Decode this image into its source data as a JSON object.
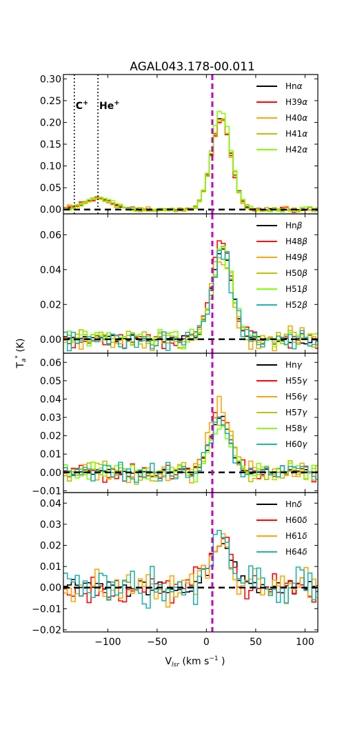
{
  "title": "AGAL043.178-00.011",
  "xlabel": "V",
  "xlabel_sub": "lsr",
  "xlabel_units": " (km s",
  "xlabel_exp": "−1",
  "xlabel_close": " )",
  "ylabel": "T",
  "ylabel_sub": "a",
  "ylabel_sup": "*",
  "ylabel_units": "  (K)",
  "chart_data": {
    "type": "line",
    "style": "step",
    "xlim": [
      -145,
      113
    ],
    "xticks": [
      -100,
      -50,
      0,
      50,
      100
    ],
    "xtick_labels": [
      "−100",
      "−50",
      "0",
      "50",
      "100"
    ],
    "grid": false,
    "v_source": 6,
    "v_source_color": "#bf00bf",
    "markers": [
      {
        "label": "C",
        "sup": "+",
        "x": -134
      },
      {
        "label": "He",
        "sup": "+",
        "x": -110
      }
    ],
    "panels": [
      {
        "id": "alpha",
        "ylim": [
          -0.01,
          0.31
        ],
        "yticks": [
          0.0,
          0.05,
          0.1,
          0.15,
          0.2,
          0.25,
          0.3
        ],
        "ytick_labels": [
          "0.00",
          "0.05",
          "0.10",
          "0.15",
          "0.20",
          "0.25",
          "0.30"
        ],
        "peak": 0.21,
        "center": 15,
        "width": 10,
        "bump": 0.025,
        "noise": 0.006,
        "show_markers": true,
        "series": [
          {
            "name": "Hn",
            "greek": "α",
            "color": "#000000",
            "amp": 1.0,
            "noise": 0.6
          },
          {
            "name": "H39",
            "greek": "α",
            "color": "#ff0000",
            "amp": 0.98,
            "noise": 1.1
          },
          {
            "name": "H40",
            "greek": "α",
            "color": "#ffa500",
            "amp": 1.02,
            "noise": 1.3
          },
          {
            "name": "H41",
            "greek": "α",
            "color": "#bfbf00",
            "amp": 0.97,
            "noise": 1.0
          },
          {
            "name": "H42",
            "greek": "α",
            "color": "#7fff00",
            "amp": 1.08,
            "noise": 1.2
          }
        ]
      },
      {
        "id": "beta",
        "ylim": [
          -0.008,
          0.072
        ],
        "yticks": [
          0.0,
          0.02,
          0.04,
          0.06
        ],
        "ytick_labels": [
          "0.00",
          "0.02",
          "0.04",
          "0.06"
        ],
        "peak": 0.052,
        "center": 16,
        "width": 10,
        "bump": 0.0,
        "noise": 0.006,
        "show_markers": false,
        "series": [
          {
            "name": "Hn",
            "greek": "β",
            "color": "#000000",
            "amp": 1.0,
            "noise": 0.5
          },
          {
            "name": "H48",
            "greek": "β",
            "color": "#ff0000",
            "amp": 1.05,
            "noise": 1.0
          },
          {
            "name": "H49",
            "greek": "β",
            "color": "#ffa500",
            "amp": 0.95,
            "noise": 1.3
          },
          {
            "name": "H50",
            "greek": "β",
            "color": "#bfbf00",
            "amp": 1.0,
            "noise": 1.1
          },
          {
            "name": "H51",
            "greek": "β",
            "color": "#7fff00",
            "amp": 0.98,
            "noise": 1.1
          },
          {
            "name": "H52",
            "greek": "β",
            "color": "#20b2aa",
            "amp": 0.97,
            "noise": 1.2
          }
        ]
      },
      {
        "id": "gamma",
        "ylim": [
          -0.011,
          0.065
        ],
        "yticks": [
          -0.01,
          0.0,
          0.01,
          0.02,
          0.03,
          0.04,
          0.05,
          0.06
        ],
        "ytick_labels": [
          "−0.01",
          "0.00",
          "0.01",
          "0.02",
          "0.03",
          "0.04",
          "0.05",
          "0.06"
        ],
        "peak": 0.03,
        "center": 14,
        "width": 10,
        "bump": 0.0,
        "noise": 0.006,
        "show_markers": false,
        "series": [
          {
            "name": "Hn",
            "greek": "γ",
            "color": "#000000",
            "amp": 1.0,
            "noise": 0.5
          },
          {
            "name": "H55",
            "greek": "γ",
            "color": "#ff0000",
            "amp": 1.05,
            "noise": 1.0
          },
          {
            "name": "H56",
            "greek": "γ",
            "color": "#ffa500",
            "amp": 1.2,
            "noise": 1.3
          },
          {
            "name": "H57",
            "greek": "γ",
            "color": "#bfbf00",
            "amp": 0.95,
            "noise": 1.2
          },
          {
            "name": "H58",
            "greek": "γ",
            "color": "#7fff00",
            "amp": 0.9,
            "noise": 1.2
          },
          {
            "name": "H60",
            "greek": "γ",
            "color": "#20b2aa",
            "amp": 0.9,
            "noise": 1.1
          }
        ]
      },
      {
        "id": "delta",
        "ylim": [
          -0.021,
          0.045
        ],
        "yticks": [
          -0.02,
          -0.01,
          0.0,
          0.01,
          0.02,
          0.03,
          0.04
        ],
        "ytick_labels": [
          "−0.02",
          "−0.01",
          "0.00",
          "0.01",
          "0.02",
          "0.03",
          "0.04"
        ],
        "peak": 0.02,
        "center": 15,
        "width": 11,
        "bump": 0.0,
        "noise": 0.009,
        "show_markers": false,
        "series": [
          {
            "name": "Hn",
            "greek": "δ",
            "color": "#000000",
            "amp": 1.0,
            "noise": 0.6
          },
          {
            "name": "H60",
            "greek": "δ",
            "color": "#ff0000",
            "amp": 1.05,
            "noise": 1.0
          },
          {
            "name": "H61",
            "greek": "δ",
            "color": "#ffa500",
            "amp": 1.1,
            "noise": 1.2
          },
          {
            "name": "H64",
            "greek": "δ",
            "color": "#20b2aa",
            "amp": 0.95,
            "noise": 1.3
          }
        ]
      }
    ]
  }
}
